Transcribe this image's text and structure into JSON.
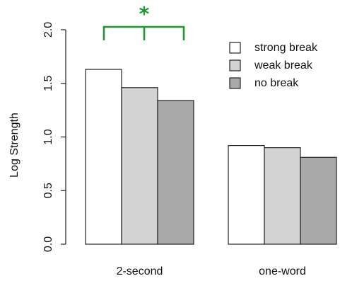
{
  "chart_data": {
    "type": "bar",
    "categories": [
      "2-second",
      "one-word"
    ],
    "series": [
      {
        "name": "strong break",
        "values": [
          1.63,
          0.92
        ],
        "color": "#ffffff"
      },
      {
        "name": "weak break",
        "values": [
          1.46,
          0.9
        ],
        "color": "#d3d3d3"
      },
      {
        "name": "no break",
        "values": [
          1.34,
          0.81
        ],
        "color": "#a9a9a9"
      }
    ],
    "ylabel": "Log Strength",
    "ylim": [
      0,
      2
    ],
    "yticks": [
      "0.0",
      "0.5",
      "1.0",
      "1.5",
      "2.0"
    ],
    "legend_position": "top-right",
    "grid": false,
    "annotation": {
      "text": "*",
      "color": "#1a9a2d",
      "category": "2-second"
    }
  }
}
